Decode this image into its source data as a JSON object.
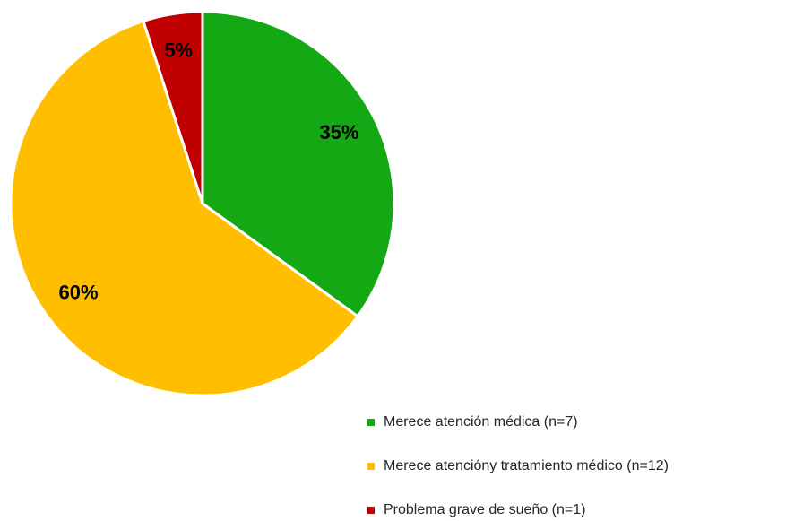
{
  "chart_data": {
    "type": "pie",
    "categories": [
      "Merece atención médica (n=7)",
      "Merece atencióny tratamiento médico (n=12)",
      "Problema grave de sueño (n=1)"
    ],
    "values": [
      35,
      60,
      5
    ],
    "value_labels": [
      "35%",
      "60%",
      "5%"
    ],
    "colors": [
      "#14a814",
      "#ffbf00",
      "#c00000"
    ],
    "legend": "bottom-right"
  }
}
